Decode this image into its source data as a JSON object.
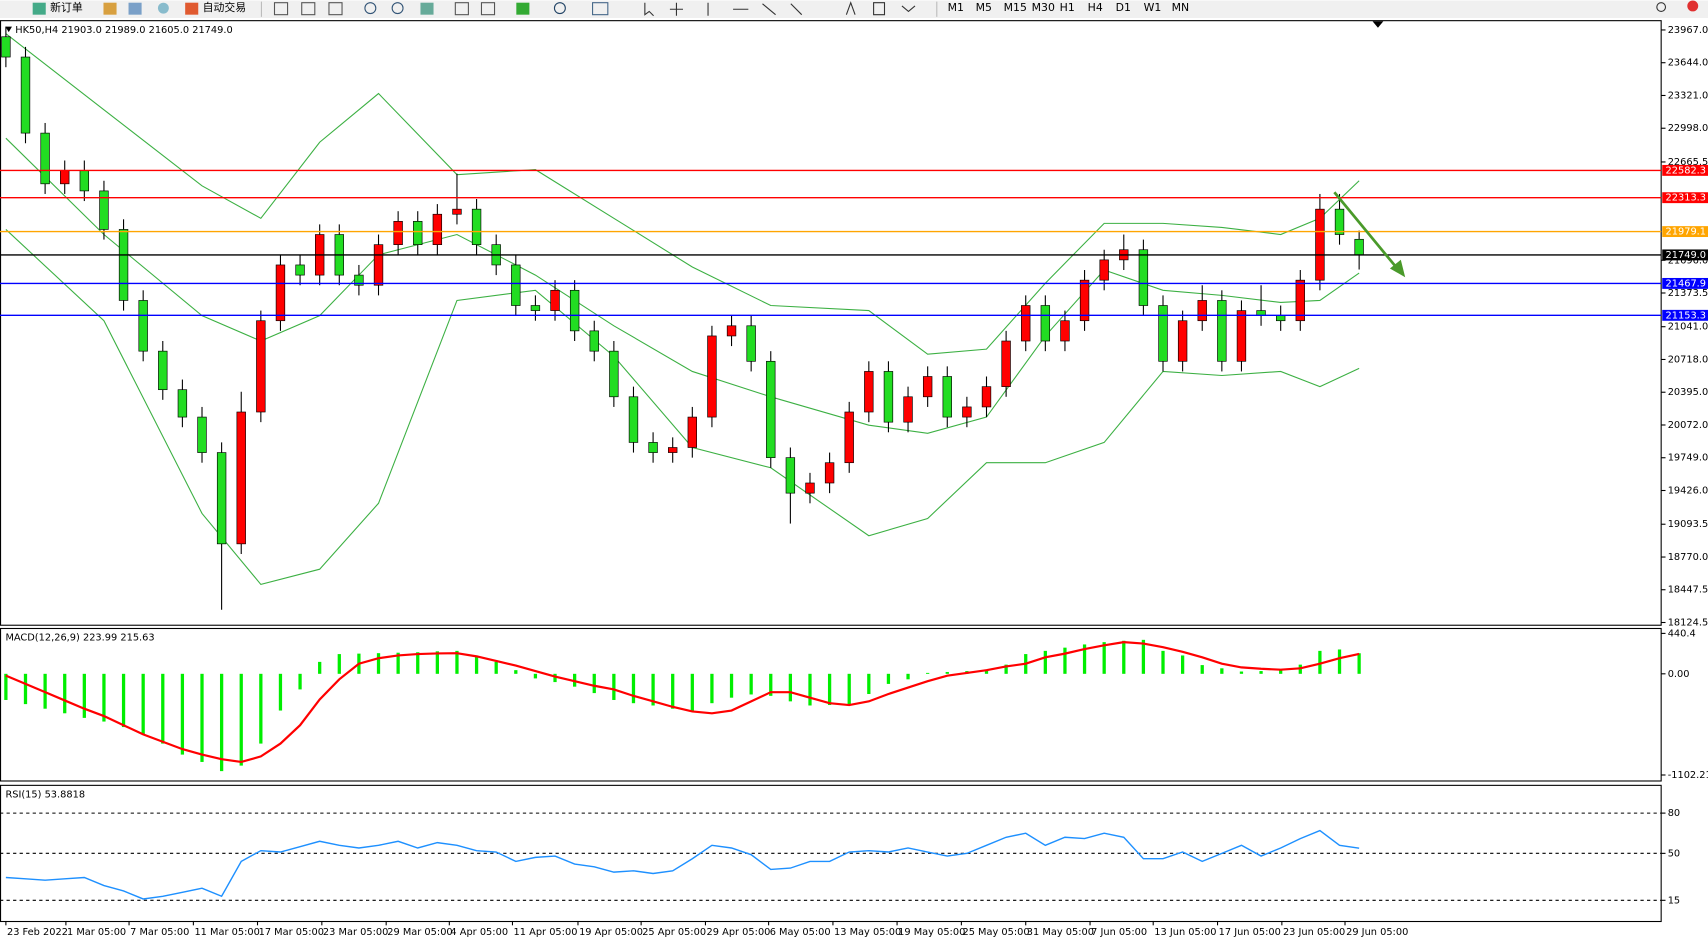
{
  "toolbar": {
    "buttons": [
      "新订单",
      "自动交易"
    ],
    "timeframes": [
      "M1",
      "M5",
      "M15",
      "M30",
      "H1",
      "H4",
      "D1",
      "W1",
      "MN"
    ]
  },
  "chart_data": [
    {
      "type": "candlestick",
      "title": "HK50,H4  21903.0 21989.0 21605.0 21749.0",
      "up_color": "#ff0000",
      "down_color": "#22dd22",
      "open": [
        23900,
        23700,
        22950,
        22450,
        22580,
        22380,
        22000,
        21300,
        20800,
        20420,
        20150,
        19800,
        18900,
        20200,
        21100,
        21650,
        21550,
        21950,
        21550,
        21450,
        21850,
        22080,
        21850,
        22150,
        22200,
        21850,
        21650,
        21250,
        21200,
        21400,
        21000,
        20800,
        20350,
        19900,
        19800,
        19850,
        20150,
        20950,
        21050,
        20700,
        19750,
        19400,
        19500,
        19700,
        20200,
        20600,
        20100,
        20350,
        20550,
        20150,
        20250,
        20450,
        20900,
        21250,
        20900,
        21100,
        21500,
        21700,
        21800,
        21250,
        20700,
        21100,
        21300,
        20700,
        21200,
        21150,
        21100,
        21500,
        22200,
        21903
      ],
      "high": [
        24000,
        23800,
        23050,
        22680,
        22680,
        22480,
        22100,
        21400,
        20900,
        20520,
        20250,
        19900,
        20400,
        21200,
        21750,
        21750,
        22050,
        22050,
        21650,
        21950,
        22180,
        22180,
        22250,
        22550,
        22300,
        21950,
        21750,
        21350,
        21500,
        21500,
        21100,
        20900,
        20450,
        20000,
        19950,
        20250,
        21050,
        21150,
        21150,
        20800,
        19850,
        19600,
        19800,
        20300,
        20700,
        20700,
        20450,
        20650,
        20650,
        20350,
        20550,
        21000,
        21350,
        21350,
        21200,
        21600,
        21800,
        21950,
        21900,
        21350,
        21200,
        21450,
        21400,
        21300,
        21450,
        21250,
        21600,
        22350,
        22350,
        21989
      ],
      "low": [
        23600,
        22850,
        22350,
        22350,
        22280,
        21900,
        21200,
        20700,
        20320,
        20050,
        19700,
        18250,
        18800,
        20100,
        21000,
        21450,
        21450,
        21450,
        21350,
        21350,
        21750,
        21750,
        21750,
        22050,
        21750,
        21550,
        21150,
        21100,
        21100,
        20900,
        20700,
        20250,
        19800,
        19700,
        19700,
        19750,
        20050,
        20850,
        20600,
        19650,
        19100,
        19300,
        19400,
        19600,
        20100,
        20000,
        20000,
        20250,
        20050,
        20050,
        20150,
        20350,
        20800,
        20800,
        20800,
        21000,
        21400,
        21600,
        21150,
        20600,
        20600,
        21000,
        20600,
        20600,
        21050,
        21000,
        21000,
        21400,
        21850,
        21605
      ],
      "close": [
        23700,
        22950,
        22450,
        22580,
        22380,
        22000,
        21300,
        20800,
        20420,
        20150,
        19800,
        18900,
        20200,
        21100,
        21650,
        21550,
        21950,
        21550,
        21450,
        21850,
        22080,
        21850,
        22150,
        22200,
        21850,
        21650,
        21250,
        21200,
        21400,
        21000,
        20800,
        20350,
        19900,
        19800,
        19850,
        20150,
        20950,
        21050,
        20700,
        19750,
        19400,
        19500,
        19700,
        20200,
        20600,
        20100,
        20350,
        20550,
        20150,
        20250,
        20450,
        20900,
        21250,
        20900,
        21100,
        21500,
        21700,
        21800,
        21250,
        20700,
        21100,
        21300,
        20700,
        21200,
        21150,
        21100,
        21500,
        22200,
        21950,
        21749
      ],
      "bands": {
        "color": "#3cb043",
        "x": [
          0,
          5,
          10,
          13,
          16,
          19,
          23,
          27,
          31,
          35,
          39,
          44,
          47,
          50,
          53,
          56,
          59,
          62,
          65,
          67,
          69
        ],
        "upper": [
          23930,
          23180,
          22430,
          22110,
          22860,
          23340,
          22540,
          22590,
          22110,
          21630,
          21250,
          21200,
          20770,
          20820,
          21470,
          22060,
          22060,
          22020,
          21950,
          22110,
          22480
        ],
        "middle": [
          22900,
          21950,
          21150,
          20900,
          21150,
          21750,
          21950,
          21550,
          21050,
          20600,
          20350,
          20070,
          19990,
          20150,
          20950,
          21600,
          21400,
          21350,
          21280,
          21300,
          21570
        ],
        "lower": [
          22000,
          21100,
          19200,
          18500,
          18650,
          19300,
          21300,
          21400,
          20750,
          19850,
          19650,
          18980,
          19150,
          19700,
          19700,
          19900,
          20600,
          20560,
          20600,
          20450,
          20630
        ]
      },
      "levels": [
        {
          "value": 22582.3,
          "color": "#ff0000"
        },
        {
          "value": 22313.3,
          "color": "#ff0000"
        },
        {
          "value": 21979.1,
          "color": "#ffa500"
        },
        {
          "value": 21749,
          "label": "21749.0",
          "color": "#000000"
        },
        {
          "value": 21467.9,
          "color": "#0000ff"
        },
        {
          "value": 21153.3,
          "color": "#0000ff"
        }
      ],
      "xlim": [
        -0.3,
        84.4
      ],
      "ylim": [
        18103,
        24064
      ],
      "yticks": [
        {
          "value": 23967,
          "label": "23967.0"
        },
        {
          "value": 23644,
          "label": "23644.0"
        },
        {
          "value": 23321,
          "label": "23321.0"
        },
        {
          "value": 22998,
          "label": "22998.0"
        },
        22665.5,
        {
          "value": 21696,
          "label": "21696.0"
        },
        21373.5,
        {
          "value": 21041,
          "label": "21041.0"
        },
        {
          "value": 20718,
          "label": "20718.0"
        },
        {
          "value": 20395,
          "label": "20395.0"
        },
        {
          "value": 20072,
          "label": "20072.0"
        },
        {
          "value": 19749,
          "label": "19749.0"
        },
        {
          "value": 19426,
          "label": "19426.0"
        },
        19093.5,
        {
          "value": 18770,
          "label": "18770.0"
        },
        18447.5,
        18124.5
      ]
    },
    {
      "type": "macd",
      "title": "MACD(12,26,9) 223.99 215.63",
      "histogram": {
        "color": "#00ee00",
        "values": [
          -285,
          -330,
          -380,
          -430,
          -480,
          -520,
          -580,
          -660,
          -760,
          -880,
          -960,
          -1060,
          -1000,
          -760,
          -400,
          -170,
          130,
          215,
          220,
          225,
          230,
          235,
          245,
          250,
          200,
          130,
          40,
          -50,
          -90,
          -140,
          -210,
          -285,
          -320,
          -345,
          -380,
          -400,
          -320,
          -260,
          -225,
          -240,
          -300,
          -345,
          -340,
          -330,
          -220,
          -110,
          -60,
          10,
          20,
          30,
          35,
          100,
          215,
          250,
          285,
          320,
          345,
          360,
          370,
          250,
          200,
          95,
          60,
          25,
          30,
          45,
          100,
          250,
          265,
          224
        ]
      },
      "signal": {
        "color": "#ff0000",
        "values": [
          -20,
          -110,
          -200,
          -290,
          -380,
          -460,
          -560,
          -660,
          -740,
          -820,
          -880,
          -930,
          -960,
          -900,
          -760,
          -560,
          -280,
          -60,
          110,
          170,
          200,
          215,
          222,
          225,
          190,
          140,
          90,
          30,
          -30,
          -80,
          -130,
          -170,
          -240,
          -300,
          -360,
          -410,
          -430,
          -400,
          -300,
          -200,
          -200,
          -260,
          -320,
          -340,
          -300,
          -220,
          -150,
          -80,
          -20,
          10,
          40,
          80,
          110,
          180,
          220,
          270,
          310,
          345,
          330,
          290,
          240,
          180,
          110,
          70,
          55,
          45,
          60,
          110,
          170,
          216
        ]
      },
      "xlim": [
        -0.3,
        84.4
      ],
      "ylim": [
        -1161.6,
        499.7
      ],
      "yticks": [
        440.4,
        {
          "value": 0,
          "label": "0.00"
        },
        -1102.21
      ]
    },
    {
      "type": "rsi",
      "title": "RSI(15) 53.8818",
      "line": {
        "color": "#1e90ff",
        "values": [
          32,
          31,
          30,
          31,
          32,
          26,
          22,
          16,
          18,
          21,
          24,
          18,
          44,
          52,
          51,
          55,
          59,
          56,
          54,
          56,
          59,
          54,
          58,
          56,
          52,
          51,
          44,
          47,
          48,
          42,
          40,
          36,
          37,
          35,
          37,
          46,
          56,
          54,
          49,
          38,
          39,
          44,
          44,
          51,
          52,
          51,
          54,
          51,
          48,
          50,
          56,
          62,
          65,
          56,
          62,
          61,
          65,
          62,
          46,
          46,
          51,
          44,
          50,
          56,
          48,
          54,
          61,
          67,
          56,
          53.8818
        ]
      },
      "xlim": [
        -0.3,
        84.4
      ],
      "ylim": [
        -0.4,
        101.1
      ],
      "yticks": [
        80,
        50,
        15
      ],
      "xticks": [
        {
          "value": 0,
          "label": "23 Feb 2022"
        },
        {
          "value": 3.06,
          "label": "1 Mar 05:00"
        },
        {
          "value": 6.28,
          "label": "7 Mar 05:00"
        },
        {
          "value": 9.56,
          "label": "11 Mar 05:00"
        },
        {
          "value": 12.83,
          "label": "17 Mar 05:00"
        },
        {
          "value": 16.11,
          "label": "23 Mar 05:00"
        },
        {
          "value": 19.39,
          "label": "29 Mar 05:00"
        },
        {
          "value": 22.61,
          "label": "4 Apr 05:00"
        },
        {
          "value": 25.83,
          "label": "11 Apr 05:00"
        },
        {
          "value": 29.17,
          "label": "19 Apr 05:00"
        },
        {
          "value": 32.39,
          "label": "25 Apr 05:00"
        },
        {
          "value": 35.67,
          "label": "29 Apr 05:00"
        },
        {
          "value": 38.89,
          "label": "6 May 05:00"
        },
        {
          "value": 42.17,
          "label": "13 May 05:00"
        },
        {
          "value": 45.44,
          "label": "19 May 05:00"
        },
        {
          "value": 48.72,
          "label": "25 May 05:00"
        },
        {
          "value": 52,
          "label": "31 May 05:00"
        },
        {
          "value": 55.28,
          "label": "7 Jun 05:00"
        },
        {
          "value": 58.5,
          "label": "13 Jun 05:00"
        },
        {
          "value": 61.78,
          "label": "17 Jun 05:00"
        },
        {
          "value": 65.06,
          "label": "23 Jun 05:00"
        },
        {
          "value": 68.28,
          "label": "29 Jun 05:00"
        }
      ]
    }
  ]
}
